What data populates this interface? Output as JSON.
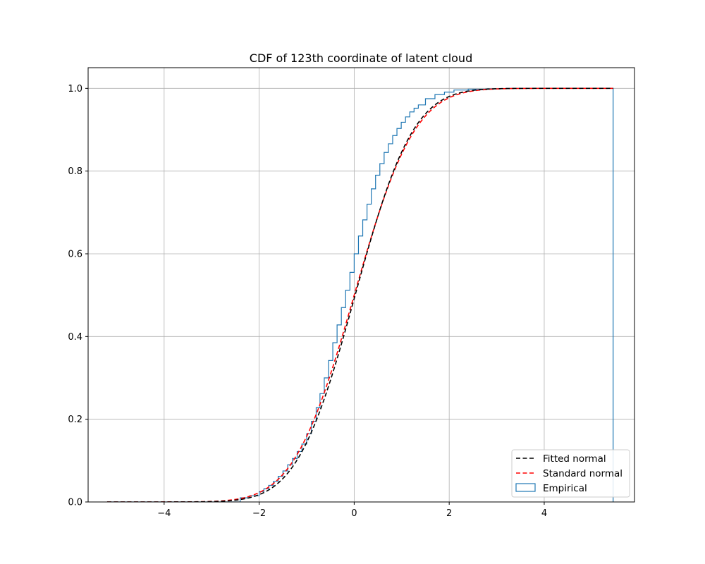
{
  "chart_data": {
    "type": "line",
    "title": "CDF of 123th coordinate of latent cloud",
    "xlabel": "",
    "ylabel": "",
    "xlim": [
      -5.6,
      5.9
    ],
    "ylim": [
      0,
      1.05
    ],
    "grid": true,
    "legend_position": "lower-right",
    "x_ticks": [
      -4,
      -2,
      0,
      2,
      4
    ],
    "x_tick_labels": [
      "−4",
      "−2",
      "0",
      "2",
      "4"
    ],
    "y_ticks": [
      0.0,
      0.2,
      0.4,
      0.6,
      0.8,
      1.0
    ],
    "y_tick_labels": [
      "0.0",
      "0.2",
      "0.4",
      "0.6",
      "0.8",
      "1.0"
    ],
    "series": [
      {
        "name": "Fitted normal",
        "color": "#000000",
        "style": "dashed",
        "distribution": {
          "mean": 0.02,
          "std": 0.96
        },
        "x_range": [
          -5.2,
          5.45
        ]
      },
      {
        "name": "Standard normal",
        "color": "#ff0000",
        "style": "dashed",
        "distribution": {
          "mean": 0.0,
          "std": 1.0
        },
        "x_range": [
          -5.2,
          5.45
        ]
      },
      {
        "name": "Empirical",
        "color": "#1f77b4",
        "style": "step",
        "x": [
          -5.2,
          -2.4,
          -2.2,
          -2.0,
          -1.9,
          -1.8,
          -1.7,
          -1.6,
          -1.5,
          -1.4,
          -1.3,
          -1.2,
          -1.1,
          -1.0,
          -0.9,
          -0.8,
          -0.72,
          -0.63,
          -0.54,
          -0.45,
          -0.36,
          -0.27,
          -0.18,
          -0.09,
          0.0,
          0.09,
          0.18,
          0.27,
          0.36,
          0.45,
          0.54,
          0.63,
          0.72,
          0.81,
          0.9,
          0.99,
          1.08,
          1.17,
          1.26,
          1.35,
          1.5,
          1.7,
          1.9,
          2.1,
          2.4,
          2.8,
          3.2,
          5.45
        ],
        "y": [
          0.0,
          0.01,
          0.015,
          0.025,
          0.032,
          0.04,
          0.05,
          0.062,
          0.075,
          0.09,
          0.105,
          0.122,
          0.14,
          0.165,
          0.195,
          0.228,
          0.262,
          0.3,
          0.342,
          0.385,
          0.428,
          0.47,
          0.512,
          0.555,
          0.6,
          0.643,
          0.682,
          0.72,
          0.757,
          0.79,
          0.818,
          0.845,
          0.866,
          0.886,
          0.903,
          0.918,
          0.931,
          0.943,
          0.952,
          0.96,
          0.975,
          0.985,
          0.991,
          0.996,
          0.998,
          0.999,
          1.0,
          1.0
        ]
      }
    ]
  }
}
